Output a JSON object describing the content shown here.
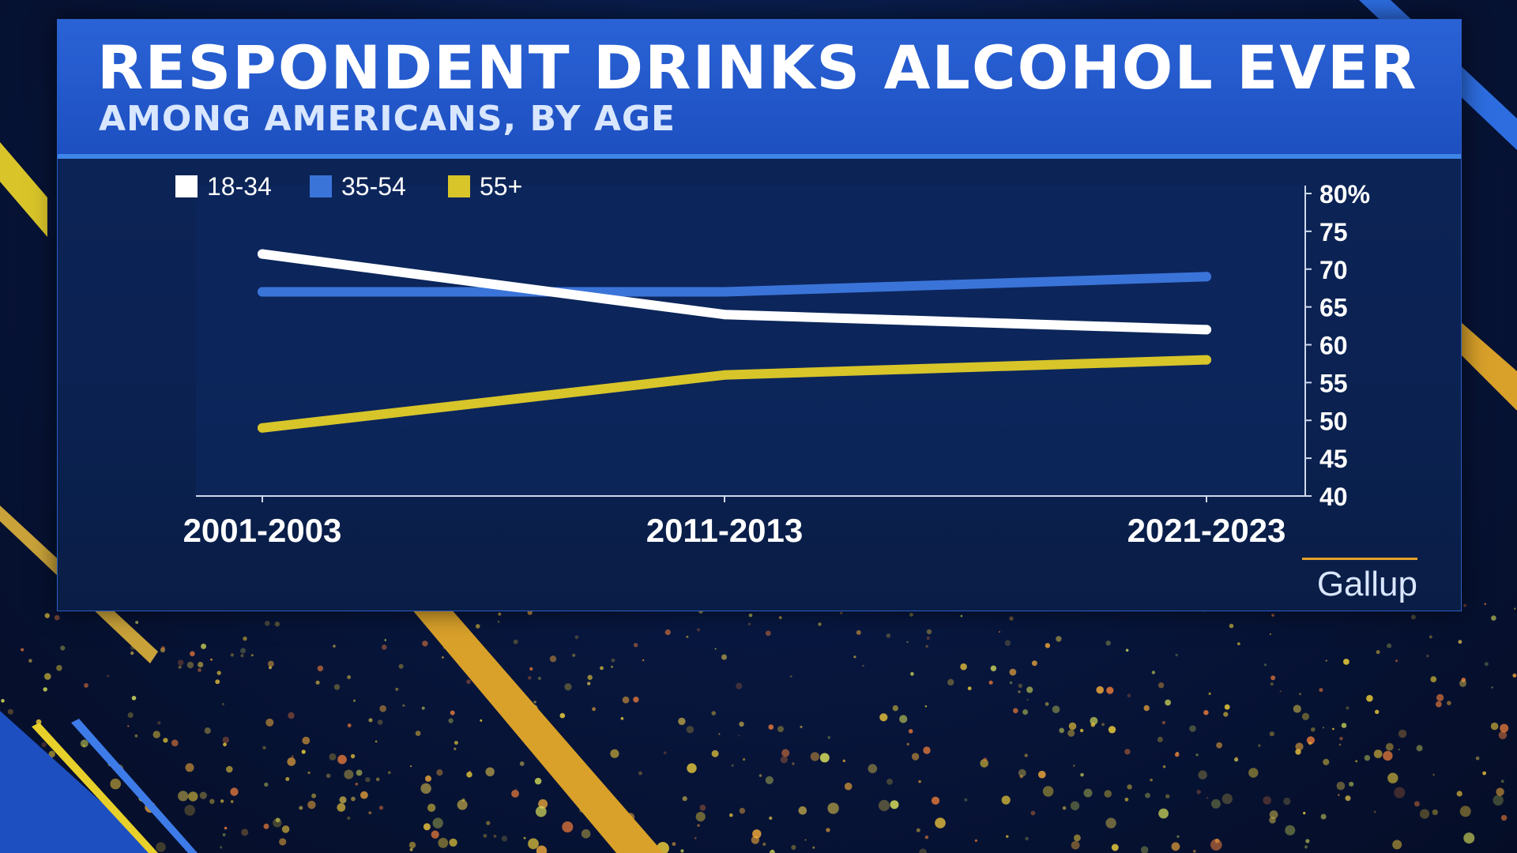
{
  "header": {
    "title": "RESPONDENT DRINKS ALCOHOL EVER",
    "subtitle": "AMONG AMERICANS, BY AGE"
  },
  "source": "Gallup",
  "colors": {
    "header_blue": "#2a63d6",
    "series_18_34": "#ffffff",
    "series_35_54": "#3b74d9",
    "series_55_plus": "#d7c52a",
    "source_rule": "#e3a32a"
  },
  "chart_data": {
    "type": "line",
    "title": "RESPONDENT DRINKS ALCOHOL EVER",
    "subtitle": "AMONG AMERICANS, BY AGE",
    "categories": [
      "2001-2003",
      "2011-2013",
      "2021-2023"
    ],
    "series": [
      {
        "name": "18-34",
        "color": "#ffffff",
        "values": [
          72,
          64,
          62
        ]
      },
      {
        "name": "35-54",
        "color": "#3b74d9",
        "values": [
          67,
          67,
          69
        ]
      },
      {
        "name": "55+",
        "color": "#d7c52a",
        "values": [
          49,
          56,
          58
        ]
      }
    ],
    "y_ticks": [
      "80%",
      "75",
      "70",
      "65",
      "60",
      "55",
      "50",
      "45",
      "40"
    ],
    "ylim": [
      40,
      80
    ],
    "y_axis_side": "right",
    "grid": false,
    "legend_position": "top-left",
    "xlabel": "",
    "ylabel": ""
  }
}
